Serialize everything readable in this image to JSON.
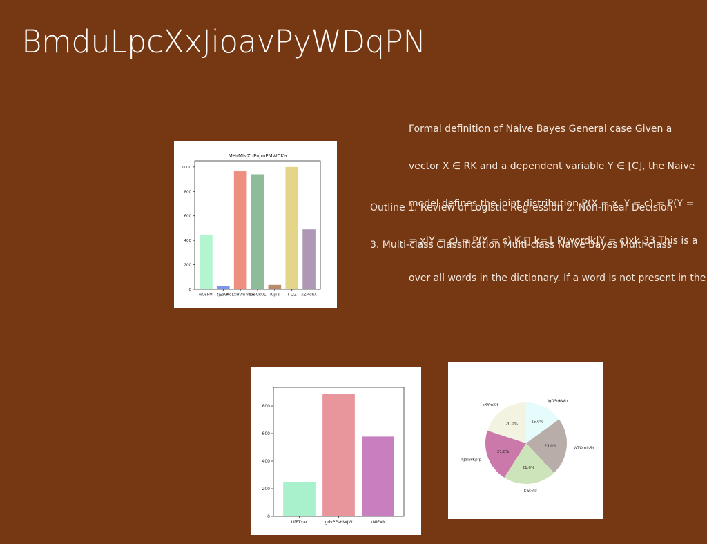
{
  "slide": {
    "title": "BmduLpcXxJioavPyWDqPN",
    "text1_lines": [
      "Formal definition of Naive Bayes General case Given a",
      "vector X ∈ RK and a dependent variable Y ∈ [C], the Naive",
      "model defines the joint distribution P(X = x, Y = c) = P(Y =",
      "= x|Y = c) = P(Y = c) K ∏ k=1 P(wordk|Y = c)xk 33 This is a",
      "over all words in the dictionary. If a word is not present in the"
    ],
    "text2_lines": [
      "Outline 1. Review of Logistic Regression 2. Non-linear Decision",
      "3. Multi-class Classification Multi-class Naive Bayes Multi-class"
    ]
  },
  "chart_data": [
    {
      "type": "bar",
      "title": "MHrMtvZnPnjmPMWCKa",
      "categories": [
        "wOsHVi",
        "tjEaWf",
        "RqLXHVmmCe",
        "zaeCRUL",
        "lGjTz",
        "T LJZ",
        "xZMdhX"
      ],
      "values": [
        445,
        25,
        965,
        940,
        35,
        1000,
        490
      ],
      "colors": [
        "#b3f5cf",
        "#7f95ec",
        "#ee8e7f",
        "#8fbc98",
        "#b98b67",
        "#e5d588",
        "#ae98b6"
      ],
      "yticks": [
        0,
        200,
        400,
        600,
        800,
        1000
      ],
      "ylim": [
        0,
        1050
      ]
    },
    {
      "type": "bar",
      "title": "",
      "categories": [
        "UfPTxar",
        "gdvPEsHWJW",
        "kNIEXN"
      ],
      "values": [
        250,
        890,
        578
      ],
      "colors": [
        "#a9f0cc",
        "#e8959c",
        "#c77fbf"
      ],
      "yticks": [
        0,
        200,
        400,
        600,
        800
      ],
      "ylim": [
        0,
        935
      ]
    },
    {
      "type": "pie",
      "labels": [
        "jgDSoKWtr",
        "WTOmfsSY",
        "KwGdx",
        "hJzIaPKpfp",
        "cXYmXlf"
      ],
      "values": [
        15.0,
        23.0,
        21.0,
        21.0,
        20.0
      ],
      "pct_labels": [
        "15.0%",
        "23.0%",
        "21.0%",
        "21.0%",
        "20.0%"
      ],
      "colors": [
        "#e6fcfc",
        "#b9ada9",
        "#cde3b9",
        "#cb78ab",
        "#f2f3e0"
      ]
    }
  ]
}
